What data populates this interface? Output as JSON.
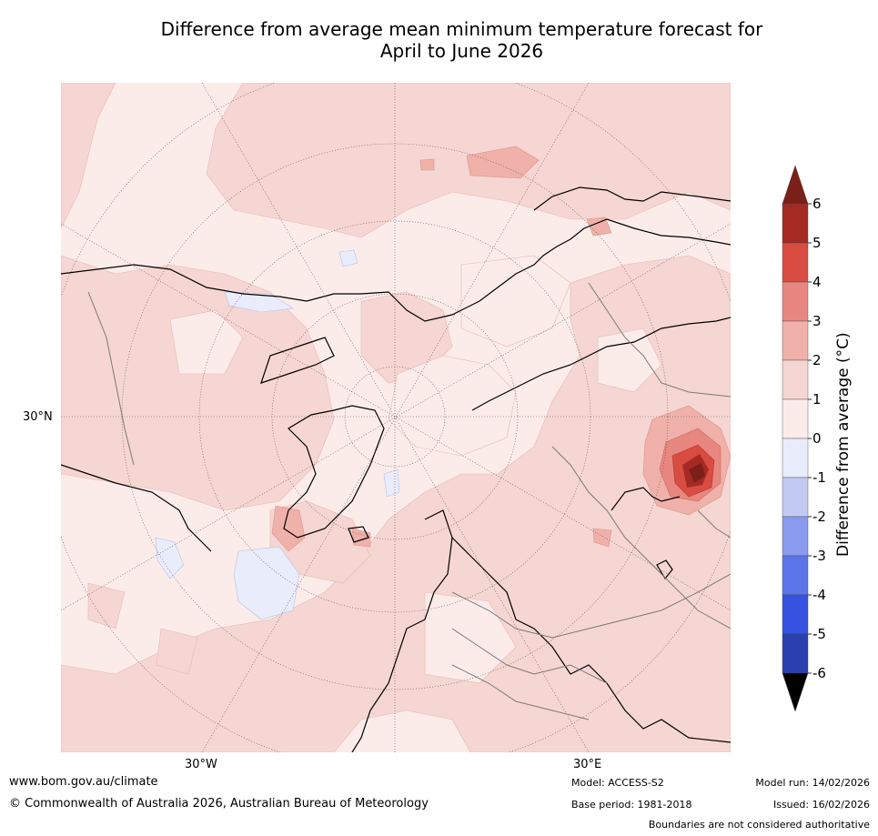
{
  "title": {
    "line1": "Difference from average mean minimum temperature forecast for",
    "line2": "April to June 2026"
  },
  "axis_labels": {
    "lat": "30°N",
    "lon_west": "30°W",
    "lon_east": "30°E"
  },
  "colorbar": {
    "title": "Difference from average (°C)",
    "ticks": [
      "6",
      "5",
      "4",
      "3",
      "2",
      "1",
      "0",
      "-1",
      "-2",
      "-3",
      "-4",
      "-5",
      "-6"
    ],
    "colors": {
      "above_6": "#7b1f19",
      "5_6": "#a52a24",
      "4_5": "#d84c41",
      "3_4": "#e8877f",
      "2_3": "#efb1aa",
      "1_2": "#f6d6d2",
      "0_1": "#fbecea",
      "-1_0": "#e9ecfa",
      "-2_-1": "#c2c9f2",
      "-3_-2": "#8a9aee",
      "-4_-3": "#5b74e8",
      "-5_-4": "#3552e0",
      "-6_-5": "#2a3fb0",
      "below_-6": "#1f2a80"
    }
  },
  "footer": {
    "website": "www.bom.gov.au/climate",
    "copyright": "© Commonwealth of Australia 2026, Australian Bureau of Meteorology",
    "model": "Model: ACCESS-S2",
    "base_period": "Base period: 1981-2018",
    "model_run": "Model run: 14/02/2026",
    "issued": "Issued: 16/02/2026",
    "disclaimer": "Boundaries are not considered authoritative"
  }
}
